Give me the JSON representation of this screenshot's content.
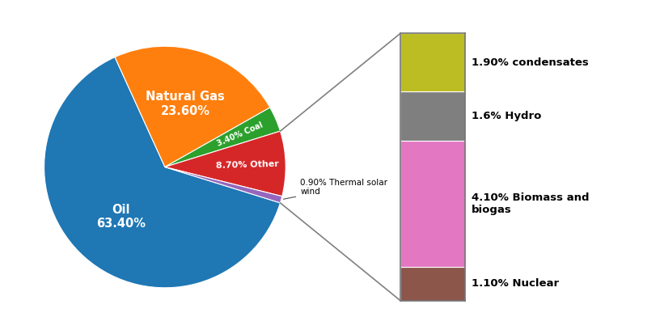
{
  "chart_data": [
    {
      "type": "pie",
      "categories": [
        "Oil\n63.40%",
        "Natural Gas\n23.60%",
        "3.40% Coal",
        "8.70% Other",
        "0.90% Thermal solar\nwind"
      ],
      "values": [
        63.4,
        23.6,
        3.4,
        8.7,
        0.9
      ]
    },
    {
      "type": "bar",
      "stacked": true,
      "categories": [
        null
      ],
      "series": [
        {
          "name": "1.10% Nuclear",
          "values": [
            1.1
          ]
        },
        {
          "name": "4.10% Biomass and\nbiogas",
          "values": [
            4.1
          ]
        },
        {
          "name": "1.6% Hydro",
          "values": [
            1.6
          ]
        },
        {
          "name": "1.90% condensates",
          "values": [
            1.9
          ]
        }
      ],
      "ylim": [
        0,
        8.7
      ],
      "tick_labels": false
    }
  ]
}
